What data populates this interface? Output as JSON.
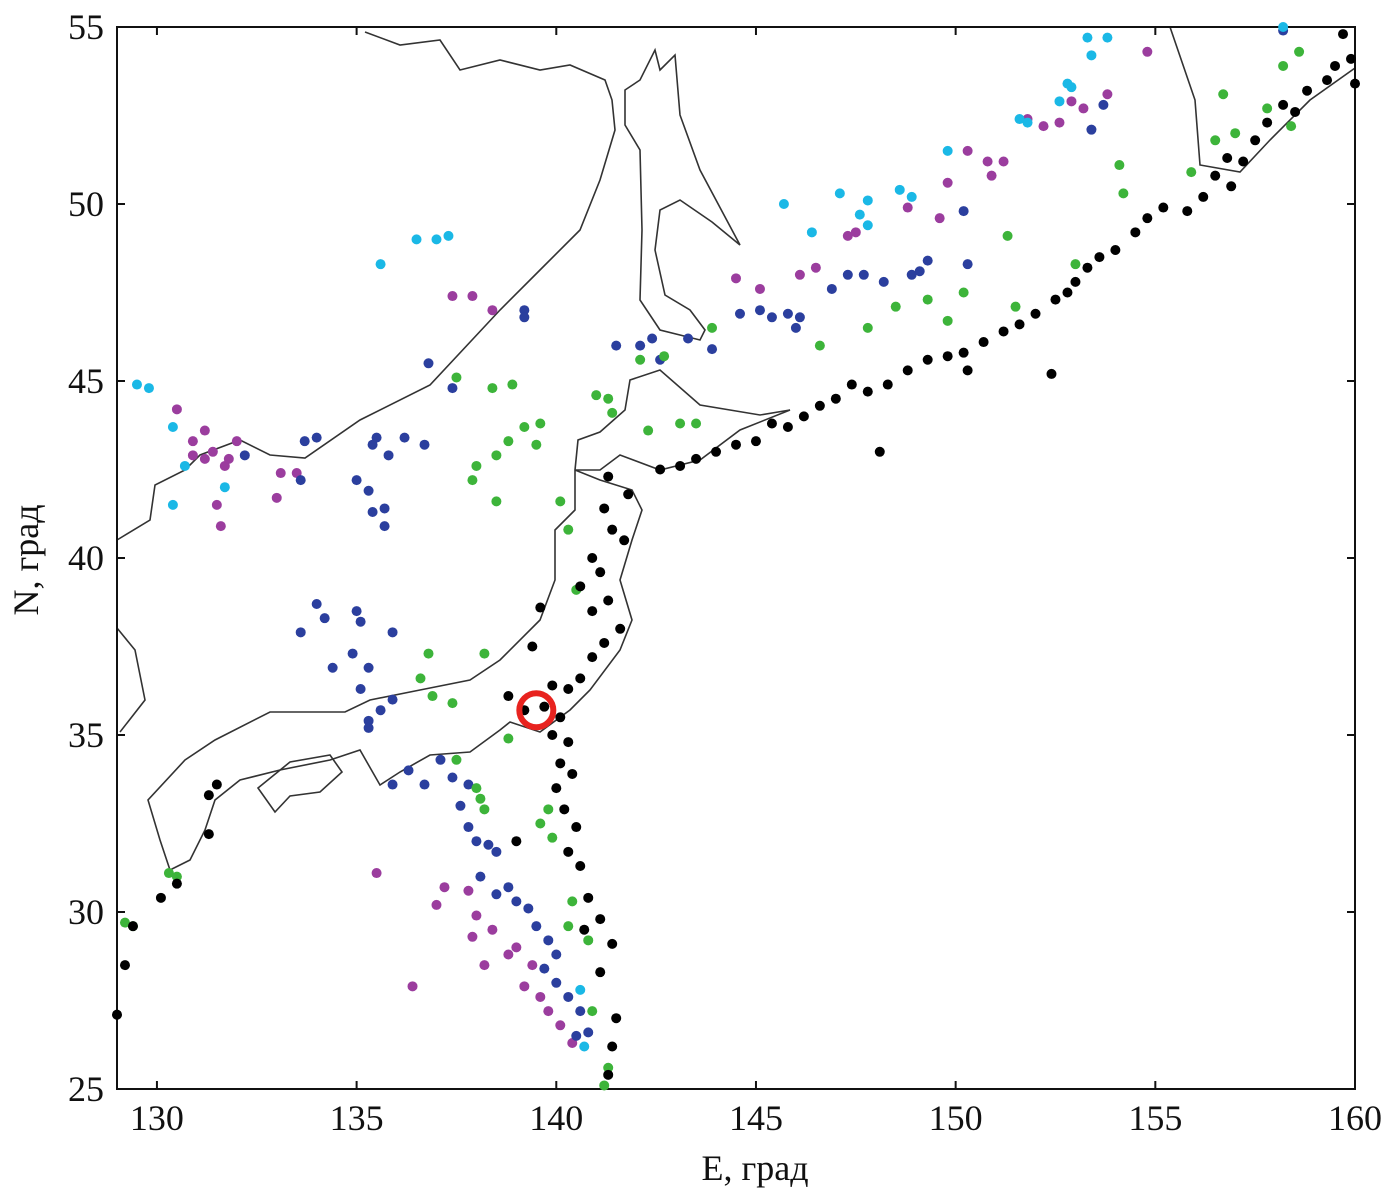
{
  "chart_data": {
    "type": "scatter",
    "xlabel": "E, град",
    "ylabel": "N, град",
    "xlim": [
      129,
      160
    ],
    "ylim": [
      25,
      55
    ],
    "xticks": [
      130,
      135,
      140,
      145,
      150,
      155,
      160
    ],
    "yticks": [
      25,
      30,
      35,
      40,
      45,
      50,
      55
    ],
    "grid": false,
    "series": [
      {
        "color": "#9b3d9e",
        "x": [
          130.5,
          130.9,
          131.2,
          130.9,
          131.2,
          131.4,
          131.7,
          131.8,
          132,
          131.5,
          131.6,
          133.1,
          133.5,
          133,
          137.4,
          137.9,
          138.4,
          135.5,
          136.4,
          137.2,
          137,
          137.8,
          138,
          137.9,
          138.4,
          138.2,
          138.8,
          139.2,
          139.6,
          139.8,
          140.1,
          140.4,
          139.4,
          139,
          144.5,
          145.1,
          146.1,
          146.5,
          147.3,
          147.5,
          148.8,
          149.8,
          150.3,
          150.8,
          151.2,
          150.9,
          151.8,
          152.2,
          152.9,
          153.2,
          153.8,
          154.8,
          152.6,
          149.6
        ],
        "y": [
          44.2,
          43.3,
          43.6,
          42.9,
          42.8,
          43,
          42.6,
          42.8,
          43.3,
          41.5,
          40.9,
          42.4,
          42.4,
          41.7,
          47.4,
          47.4,
          47,
          31.1,
          27.9,
          30.7,
          30.2,
          30.6,
          29.9,
          29.3,
          29.5,
          28.5,
          28.8,
          27.9,
          27.6,
          27.2,
          26.8,
          26.3,
          28.5,
          29,
          47.9,
          47.6,
          48,
          48.2,
          49.1,
          49.2,
          49.9,
          50.6,
          51.5,
          51.2,
          51.2,
          50.8,
          52.4,
          52.2,
          52.9,
          52.7,
          53.1,
          54.3,
          52.3,
          49.6
        ]
      },
      {
        "color": "#2b3f9e",
        "x": [
          132.2,
          133.7,
          134,
          133.6,
          135,
          135.3,
          135.4,
          135.5,
          135.8,
          136.2,
          136.7,
          135.4,
          135.7,
          135.7,
          136.8,
          137.4,
          134,
          133.6,
          134.2,
          134.4,
          134.9,
          135.1,
          135,
          135.1,
          135.3,
          135.9,
          135.9,
          135.3,
          135.6,
          135.3,
          135.9,
          136.3,
          136.7,
          137.1,
          137.4,
          137.8,
          137.6,
          137.8,
          138,
          138.3,
          138.5,
          138.1,
          138.5,
          138.8,
          139,
          139.3,
          139.5,
          139.8,
          140,
          139.7,
          140,
          140.3,
          140.6,
          140.8,
          140.5,
          139.2,
          139.2,
          142.1,
          142.4,
          143.3,
          143.9,
          144.6,
          145.1,
          145.4,
          145.8,
          146.1,
          146,
          146.9,
          147.3,
          147.7,
          148.2,
          148.9,
          149.3,
          149.1,
          150.3,
          150.2,
          153.4,
          153.7,
          158.2,
          141.5,
          142.6
        ],
        "y": [
          42.9,
          43.3,
          43.4,
          42.2,
          42.2,
          41.9,
          43.2,
          43.4,
          42.9,
          43.4,
          43.2,
          41.3,
          41.4,
          40.9,
          45.5,
          44.8,
          38.7,
          37.9,
          38.3,
          36.9,
          37.3,
          36.3,
          38.5,
          38.2,
          36.9,
          37.9,
          36,
          35.4,
          35.7,
          35.2,
          33.6,
          34,
          33.6,
          34.3,
          33.8,
          33.6,
          33,
          32.4,
          32,
          31.9,
          31.7,
          31,
          30.5,
          30.7,
          30.3,
          30.1,
          29.6,
          29.2,
          28.8,
          28.4,
          28,
          27.6,
          27.2,
          26.6,
          26.5,
          47,
          46.8,
          46,
          46.2,
          46.2,
          45.9,
          46.9,
          47,
          46.8,
          46.9,
          46.8,
          46.5,
          47.6,
          48,
          48,
          47.8,
          48,
          48.4,
          48.1,
          48.3,
          49.8,
          52.1,
          52.8,
          54.9,
          46,
          45.6
        ]
      },
      {
        "color": "#3db43a",
        "x": [
          129.2,
          129.4,
          130.3,
          130.5,
          141.2,
          141.3,
          140.9,
          140.8,
          140.3,
          140.4,
          139.9,
          139.6,
          139.8,
          138.1,
          138.2,
          138,
          137.5,
          138.8,
          138.2,
          136.8,
          136.6,
          136.9,
          137.4,
          137.9,
          138,
          138.5,
          138.8,
          139.2,
          139.6,
          139.5,
          138.5,
          138.4,
          138.9,
          137.5,
          140.1,
          140.3,
          140.5,
          141,
          141.3,
          141.4,
          142.1,
          142.7,
          142.3,
          143.1,
          143.5,
          143.9,
          146.6,
          147.8,
          148.5,
          149.3,
          149.8,
          150.2,
          151.5,
          151.3,
          153,
          154.2,
          154.1,
          155.9,
          156.5,
          157.8,
          158.2,
          158.6,
          156.7,
          157,
          158.4
        ],
        "y": [
          29.7,
          29.6,
          31.1,
          31,
          25.1,
          25.6,
          27.2,
          29.2,
          29.6,
          30.3,
          32.1,
          32.5,
          32.9,
          33.2,
          32.9,
          33.5,
          34.3,
          34.9,
          37.3,
          37.3,
          36.6,
          36.1,
          35.9,
          42.2,
          42.6,
          42.9,
          43.3,
          43.7,
          43.8,
          43.2,
          41.6,
          44.8,
          44.9,
          45.1,
          41.6,
          40.8,
          39.1,
          44.6,
          44.5,
          44.1,
          45.6,
          45.7,
          43.6,
          43.8,
          43.8,
          46.5,
          46,
          46.5,
          47.1,
          47.3,
          46.7,
          47.5,
          47.1,
          49.1,
          48.3,
          50.3,
          51.1,
          50.9,
          51.8,
          52.7,
          53.9,
          54.3,
          53.1,
          52,
          52.2
        ]
      },
      {
        "color": "#1ab8e6",
        "x": [
          129.5,
          129.8,
          130.4,
          130.4,
          130.7,
          131.7,
          135.6,
          136.5,
          137,
          137.3,
          145.7,
          146.4,
          147.1,
          147.6,
          147.8,
          147.8,
          148.6,
          148.9,
          149.8,
          151.6,
          151.8,
          152.8,
          152.9,
          152.6,
          153.3,
          153.8,
          153.4,
          158.2,
          140.6,
          140.7
        ],
        "y": [
          44.9,
          44.8,
          43.7,
          41.5,
          42.6,
          42,
          48.3,
          49,
          49,
          49.1,
          50,
          49.2,
          50.3,
          49.7,
          50.1,
          49.4,
          50.4,
          50.2,
          51.5,
          52.4,
          52.3,
          53.4,
          53.3,
          52.9,
          54.7,
          54.7,
          54.2,
          55,
          27.8,
          26.2
        ]
      },
      {
        "color": "#000000",
        "x": [
          159.7,
          159.9,
          159.5,
          160,
          159.3,
          158.8,
          158.2,
          157.8,
          158.5,
          157.5,
          157.2,
          156.8,
          156.5,
          156.9,
          156.2,
          155.8,
          155.2,
          154.8,
          154.5,
          154,
          153.6,
          153.3,
          153,
          152.8,
          152.5,
          152,
          151.6,
          151.2,
          150.7,
          150.2,
          149.8,
          149.3,
          148.8,
          148.3,
          147.8,
          147.4,
          147,
          146.6,
          146.2,
          145.8,
          145.4,
          145,
          144.5,
          144,
          143.5,
          143.1,
          142.6,
          148.1,
          152.4,
          150.3,
          141.3,
          141.8,
          141.2,
          141.4,
          141.7,
          140.9,
          141.1,
          140.6,
          141.3,
          140.9,
          141.6,
          141.2,
          140.9,
          140.6,
          140.3,
          139.9,
          139.7,
          140.1,
          139.2,
          139.9,
          140.3,
          140.1,
          140.4,
          140,
          140.2,
          140.5,
          140.3,
          140.6,
          140.8,
          141.1,
          140.7,
          141.4,
          141.1,
          141.5,
          141.4,
          141.3,
          139.6,
          139.4,
          138.8,
          139,
          131.3,
          131.5,
          131.3,
          130.5,
          130.1,
          129.4,
          129.2,
          129
        ],
        "y": [
          54.8,
          54.1,
          53.9,
          53.4,
          53.5,
          53.2,
          52.8,
          52.3,
          52.6,
          51.8,
          51.2,
          51.3,
          50.8,
          50.5,
          50.2,
          49.8,
          49.9,
          49.6,
          49.2,
          48.7,
          48.5,
          48.2,
          47.8,
          47.5,
          47.3,
          46.9,
          46.6,
          46.4,
          46.1,
          45.8,
          45.7,
          45.6,
          45.3,
          44.9,
          44.7,
          44.9,
          44.5,
          44.3,
          44,
          43.7,
          43.8,
          43.3,
          43.2,
          43,
          42.8,
          42.6,
          42.5,
          43,
          45.2,
          45.3,
          42.3,
          41.8,
          41.4,
          40.8,
          40.5,
          40,
          39.6,
          39.2,
          38.8,
          38.5,
          38,
          37.6,
          37.2,
          36.6,
          36.3,
          36.4,
          35.8,
          35.5,
          35.7,
          35,
          34.8,
          34.2,
          33.9,
          33.5,
          32.9,
          32.4,
          31.7,
          31.3,
          30.4,
          29.8,
          29.5,
          29.1,
          28.3,
          27,
          26.2,
          25.4,
          38.6,
          37.5,
          36.1,
          32,
          33.3,
          33.6,
          32.2,
          30.8,
          30.4,
          29.6,
          28.5,
          27.1
        ]
      }
    ],
    "marker": {
      "x": 139.5,
      "y": 35.7,
      "color": "#e8231f"
    }
  }
}
